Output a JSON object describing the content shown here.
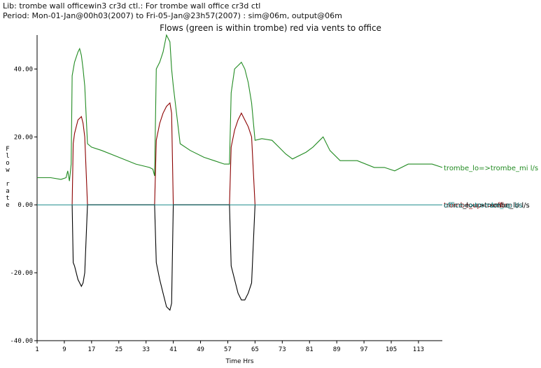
{
  "header": {
    "line1": "Lib: trombe  wall  officewin3  cr3d  ctl.: For trombe  wall  office  cr3d  ctl",
    "line2": "Period: Mon-01-Jan@00h03(2007) to Fri-05-Jan@23h57(2007) : sim@06m, output@06m"
  },
  "chart_data": {
    "type": "line",
    "title": "Flows (green is within trombe) red via vents to office",
    "xlabel": "Time Hrs",
    "ylabel": "Flow rate",
    "xlim": [
      1,
      120
    ],
    "ylim": [
      -40,
      50
    ],
    "x_ticks": [
      "1",
      "9",
      "17",
      "25",
      "33",
      "41",
      "49",
      "57",
      "65",
      "73",
      "81",
      "89",
      "97",
      "105",
      "113"
    ],
    "y_ticks": [
      "40.00",
      "20.00",
      "0.00",
      "-20.00",
      "-40.00"
    ],
    "grid": false,
    "colors": {
      "trombe_lo_mi": "#228B22",
      "trombe_up_office": "#8B0000",
      "office_lo": "#000000",
      "zero_line": "#1a8a8a"
    },
    "series": [
      {
        "name": "trombe_lo=>trombe_mi l/s",
        "x": [
          1,
          5,
          8,
          9.5,
          10,
          10.5,
          11,
          11.3,
          12,
          13,
          13.5,
          14,
          14.5,
          15,
          15.8,
          17,
          20,
          25,
          30,
          34,
          35,
          35.5,
          36,
          37,
          38,
          39,
          40,
          40.5,
          41,
          43,
          46,
          50,
          53,
          56,
          57.5,
          58,
          59,
          60,
          61,
          62,
          63,
          64,
          65,
          67,
          70,
          72,
          74,
          76,
          80,
          82,
          84,
          85,
          87,
          90,
          95,
          100,
          103,
          106,
          110,
          114,
          117,
          120
        ],
        "y": [
          8,
          8,
          7.5,
          8,
          10,
          7,
          12,
          38,
          42,
          45,
          46,
          44,
          40,
          35,
          18,
          17,
          16,
          14,
          12,
          11,
          10.5,
          8.5,
          40,
          42,
          45,
          50,
          48,
          40,
          35,
          18,
          16,
          14,
          13,
          12,
          12,
          33,
          40,
          41,
          42,
          40,
          36,
          30,
          19,
          19.5,
          19,
          17,
          15,
          13.5,
          15.5,
          17,
          19,
          20,
          16,
          13,
          13,
          11,
          11,
          10,
          12,
          12,
          12,
          11
        ]
      },
      {
        "name": "trombe_up=>office l/s",
        "x": [
          11.3,
          11.6,
          12,
          13,
          14,
          14.5,
          15,
          15.8,
          35.5,
          36,
          37,
          38,
          39,
          40,
          40.5,
          41,
          57.5,
          58,
          59,
          60,
          61,
          62,
          63,
          64,
          65
        ],
        "y": [
          0,
          18,
          21,
          25,
          26,
          24,
          20,
          0,
          0,
          19,
          24,
          27,
          29,
          30,
          27,
          0,
          0,
          17,
          22,
          25,
          27,
          25,
          23,
          20,
          0
        ]
      },
      {
        "name": "office_lo=>trombe_lo l/s",
        "x": [
          11.3,
          11.6,
          12,
          13,
          14,
          14.5,
          15,
          15.8,
          35.5,
          36,
          37,
          38,
          39,
          40,
          40.5,
          41,
          57.5,
          58,
          59,
          60,
          61,
          62,
          63,
          64,
          65
        ],
        "y": [
          0,
          -17,
          -18,
          -22,
          -24,
          -23,
          -20,
          0,
          0,
          -17,
          -22,
          -26,
          -30,
          -31,
          -29,
          0,
          0,
          -18,
          -22,
          -26,
          -28,
          -28,
          -26,
          -23,
          0
        ]
      },
      {
        "name": "office=>trombe_up l/s",
        "x": [
          1,
          120
        ],
        "y": [
          0,
          0
        ]
      }
    ]
  }
}
